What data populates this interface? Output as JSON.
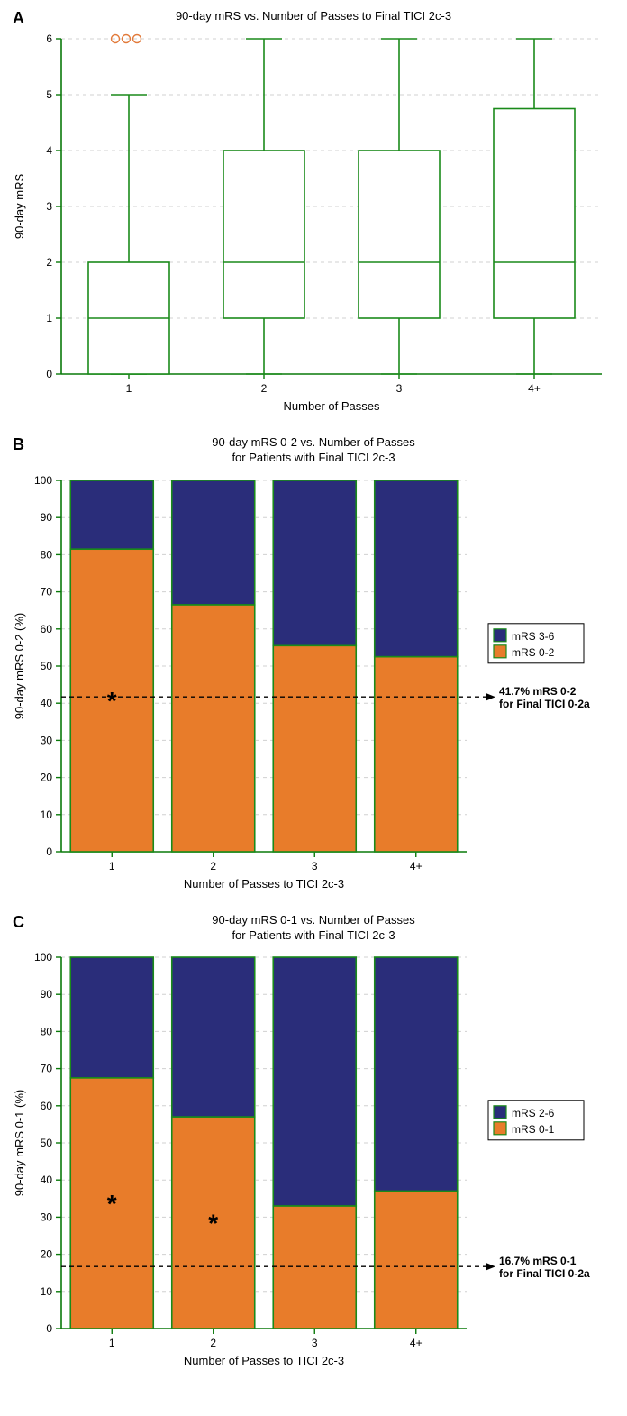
{
  "panelA": {
    "label": "A",
    "title": "90-day mRS vs. Number of Passes to Final TICI 2c-3",
    "xlabel": "Number of Passes",
    "ylabel": "90-day mRS",
    "categories": [
      "1",
      "2",
      "3",
      "4+"
    ],
    "ylim": [
      0,
      6
    ],
    "yticks": [
      0,
      1,
      2,
      3,
      4,
      5,
      6
    ],
    "boxes": [
      {
        "q1": 0,
        "median": 1,
        "q3": 2,
        "whisker_low": 0,
        "whisker_high": 5,
        "outliers": [
          6,
          6,
          6
        ]
      },
      {
        "q1": 1,
        "median": 2,
        "q3": 4,
        "whisker_low": 0,
        "whisker_high": 6,
        "outliers": []
      },
      {
        "q1": 1,
        "median": 2,
        "q3": 4,
        "whisker_low": 0,
        "whisker_high": 6,
        "outliers": []
      },
      {
        "q1": 1,
        "median": 2,
        "q3": 4.75,
        "whisker_low": 0,
        "whisker_high": 6,
        "outliers": []
      }
    ],
    "box_stroke": "#1a8a1a",
    "box_fill": "#ffffff",
    "outlier_stroke": "#e27a3a",
    "grid_color": "#d0d0d0",
    "axis_color": "#0a7a0a",
    "text_color": "#000000",
    "label_fontsize": 13,
    "tick_fontsize": 12,
    "title_fontsize": 13,
    "line_width": 1.6
  },
  "panelB": {
    "label": "B",
    "title_line1": "90-day mRS 0-2 vs. Number of Passes",
    "title_line2": "for Patients with Final TICI 2c-3",
    "xlabel": "Number of Passes to TICI 2c-3",
    "ylabel": "90-day mRS 0-2 (%)",
    "categories": [
      "1",
      "2",
      "3",
      "4+"
    ],
    "ylim": [
      0,
      100
    ],
    "yticks": [
      0,
      10,
      20,
      30,
      40,
      50,
      60,
      70,
      80,
      90,
      100
    ],
    "lower_values": [
      81.5,
      66.5,
      55.5,
      52.5
    ],
    "lower_fill": "#e87c2a",
    "upper_fill": "#2a2d7a",
    "bar_stroke": "#1a8a1a",
    "starred": [
      true,
      false,
      false,
      false
    ],
    "threshold_value": 41.7,
    "threshold_label_line1": "41.7% mRS 0-2",
    "threshold_label_line2": "for Final TICI 0-2a",
    "legend_upper": "mRS 3-6",
    "legend_lower": "mRS 0-2",
    "grid_color": "#d0d0d0",
    "axis_color": "#0a7a0a",
    "text_color": "#000000",
    "label_fontsize": 13,
    "tick_fontsize": 12,
    "title_fontsize": 13,
    "bar_stroke_width": 1.6
  },
  "panelC": {
    "label": "C",
    "title_line1": "90-day mRS 0-1 vs. Number of Passes",
    "title_line2": "for Patients with Final TICI 2c-3",
    "xlabel": "Number of Passes to TICI 2c-3",
    "ylabel": "90-day mRS 0-1 (%)",
    "categories": [
      "1",
      "2",
      "3",
      "4+"
    ],
    "ylim": [
      0,
      100
    ],
    "yticks": [
      0,
      10,
      20,
      30,
      40,
      50,
      60,
      70,
      80,
      90,
      100
    ],
    "lower_values": [
      67.5,
      57,
      33,
      37
    ],
    "lower_fill": "#e87c2a",
    "upper_fill": "#2a2d7a",
    "bar_stroke": "#1a8a1a",
    "starred": [
      true,
      true,
      false,
      false
    ],
    "threshold_value": 16.7,
    "threshold_label_line1": "16.7% mRS 0-1",
    "threshold_label_line2": "for Final TICI 0-2a",
    "legend_upper": "mRS 2-6",
    "legend_lower": "mRS 0-1",
    "grid_color": "#d0d0d0",
    "axis_color": "#0a7a0a",
    "text_color": "#000000",
    "label_fontsize": 13,
    "tick_fontsize": 12,
    "title_fontsize": 13,
    "bar_stroke_width": 1.6
  }
}
